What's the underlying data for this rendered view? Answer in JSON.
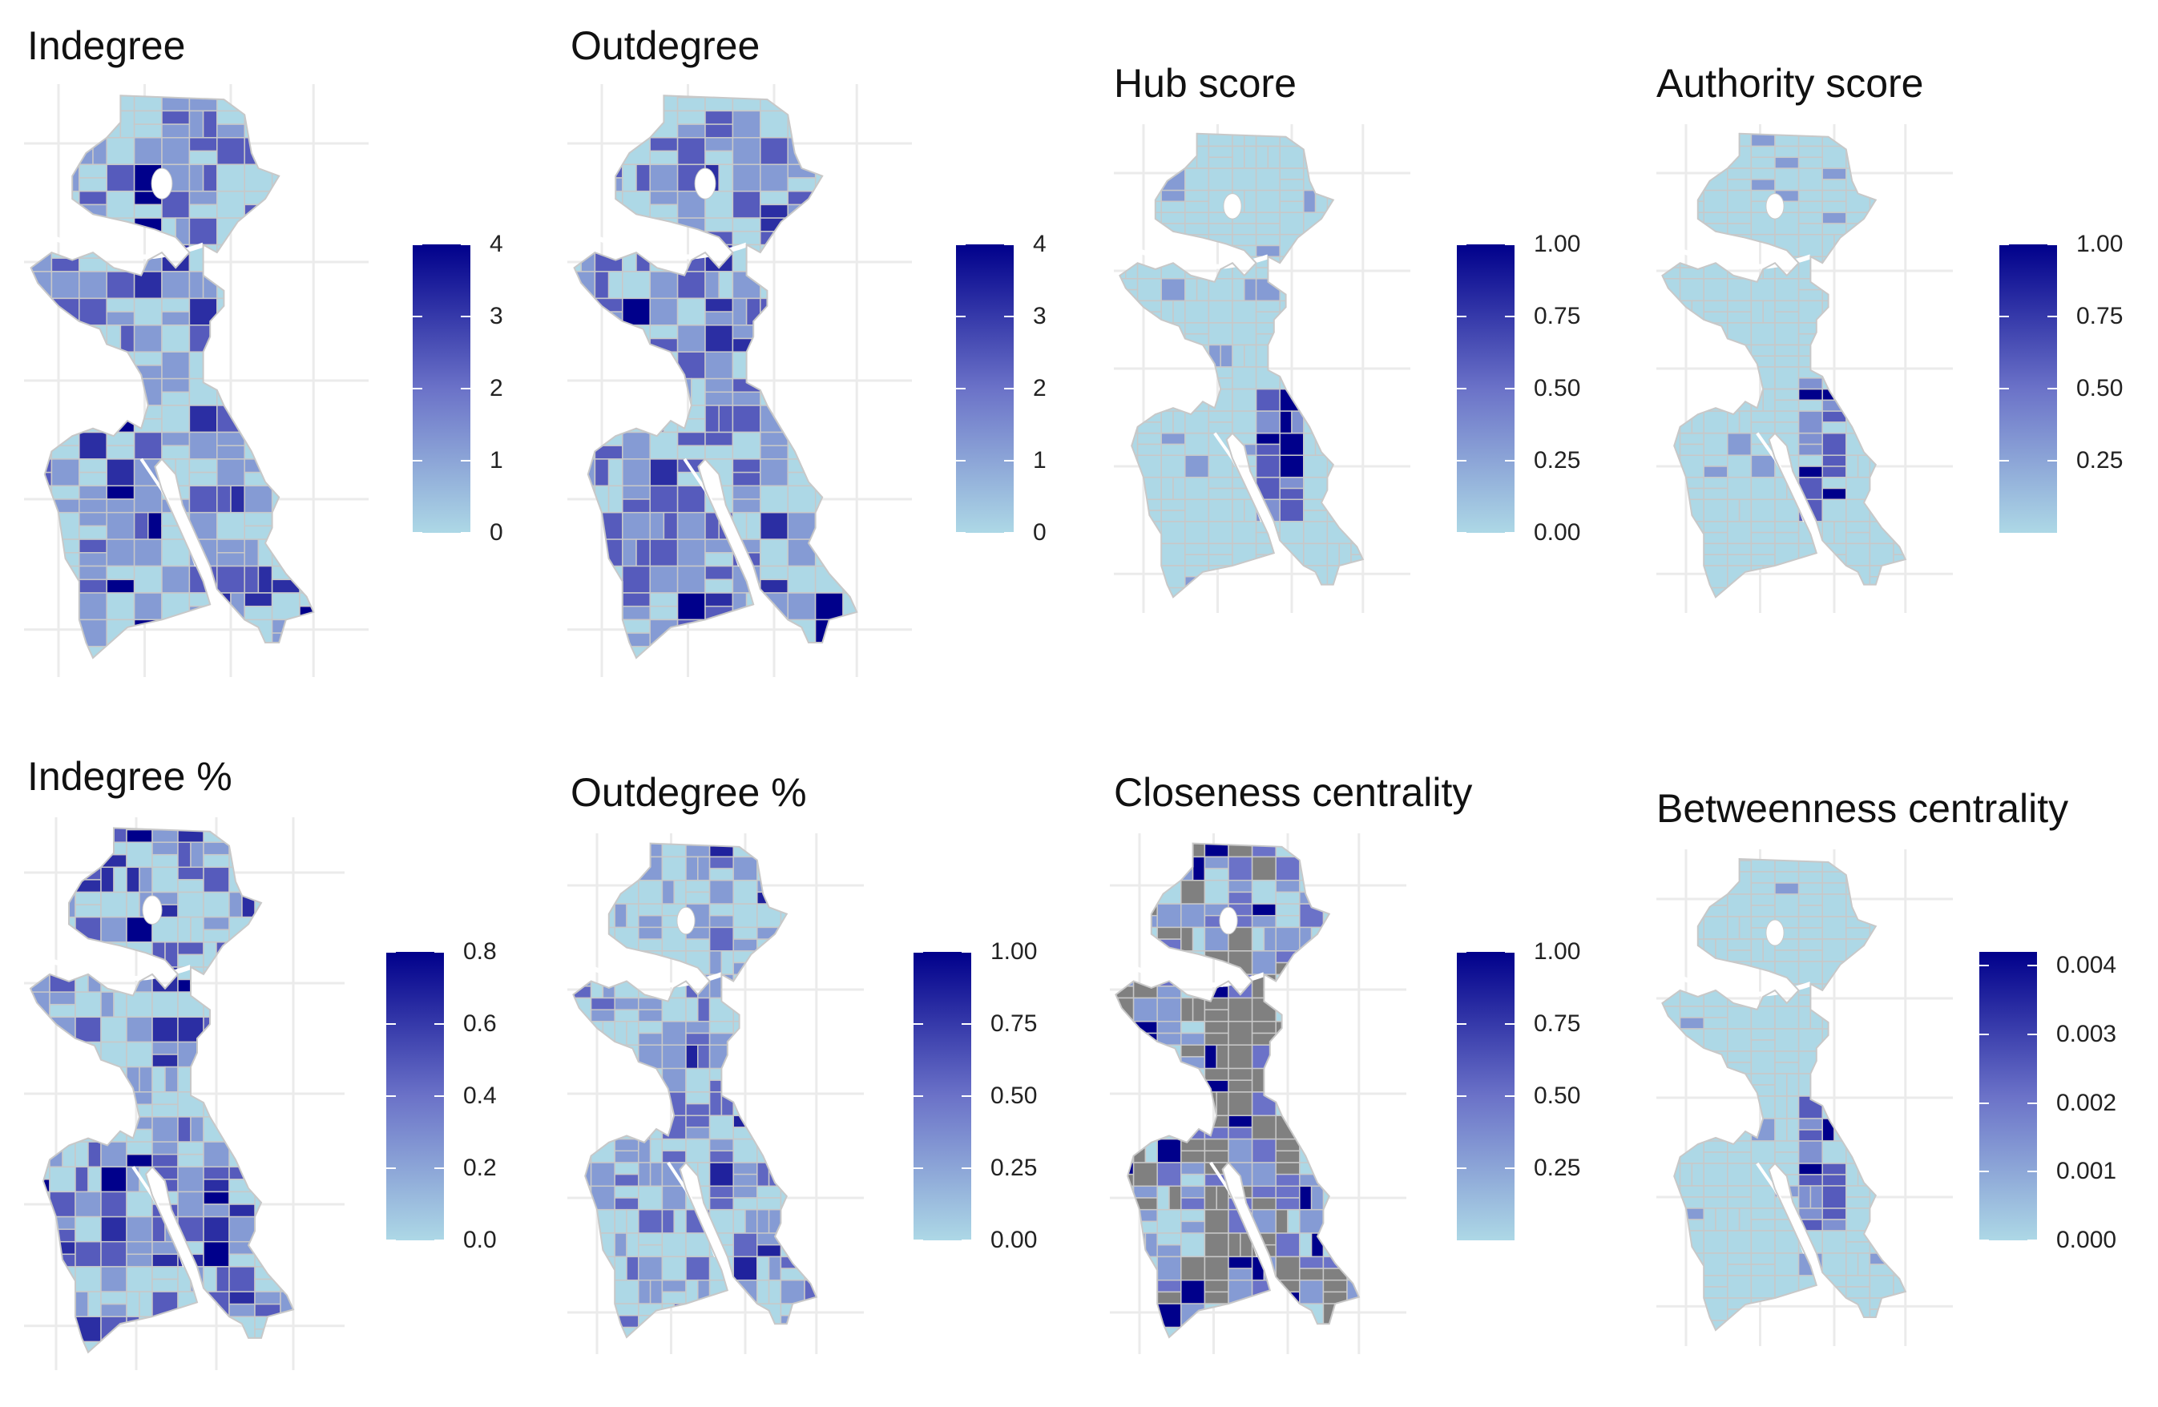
{
  "colors": {
    "low": "#add8e6",
    "mid": "#6b72c8",
    "high": "#00008b",
    "na": "#808080",
    "border": "#c8c8c8",
    "grid": "#ebebeb"
  },
  "panels": [
    {
      "title": "Indegree",
      "legend": {
        "min": 0,
        "max": 4,
        "labels": [
          "4",
          "3",
          "2",
          "1",
          "0"
        ],
        "label_values": [
          4,
          3,
          2,
          1,
          0
        ]
      },
      "fill": "mixed-medium"
    },
    {
      "title": "Outdegree",
      "legend": {
        "min": 0,
        "max": 4,
        "labels": [
          "4",
          "3",
          "2",
          "1",
          "0"
        ],
        "label_values": [
          4,
          3,
          2,
          1,
          0
        ]
      },
      "fill": "mixed-medium"
    },
    {
      "title": "Hub score",
      "legend": {
        "min": 0,
        "max": 1,
        "labels": [
          "1.00",
          "0.75",
          "0.50",
          "0.25",
          "0.00"
        ],
        "label_values": [
          1,
          0.75,
          0.5,
          0.25,
          0
        ]
      },
      "fill": "mostly-low"
    },
    {
      "title": "Authority score",
      "legend": {
        "min": 0,
        "max": 1,
        "labels": [
          "1.00",
          "0.75",
          "0.50",
          "0.25"
        ],
        "label_values": [
          1,
          0.75,
          0.5,
          0.25
        ]
      },
      "fill": "mostly-low"
    },
    {
      "title": "Indegree %",
      "legend": {
        "min": 0,
        "max": 0.8,
        "labels": [
          "0.8",
          "0.6",
          "0.4",
          "0.2",
          "0.0"
        ],
        "label_values": [
          0.8,
          0.6,
          0.4,
          0.2,
          0
        ]
      },
      "fill": "mixed-medium"
    },
    {
      "title": "Outdegree %",
      "legend": {
        "min": 0,
        "max": 1,
        "labels": [
          "1.00",
          "0.75",
          "0.50",
          "0.25",
          "0.00"
        ],
        "label_values": [
          1,
          0.75,
          0.5,
          0.25,
          0
        ]
      },
      "fill": "mixed-light"
    },
    {
      "title": "Closeness centrality",
      "legend": {
        "min": 0,
        "max": 1,
        "labels": [
          "1.00",
          "0.75",
          "0.50",
          "0.25"
        ],
        "label_values": [
          1,
          0.75,
          0.5,
          0.25
        ]
      },
      "fill": "with-na"
    },
    {
      "title": "Betweenness centrality",
      "legend": {
        "min": 0,
        "max": 0.0042,
        "labels": [
          "0.004",
          "0.003",
          "0.002",
          "0.001",
          "0.000"
        ],
        "label_values": [
          0.004,
          0.003,
          0.002,
          0.001,
          0
        ]
      },
      "fill": "mostly-low"
    }
  ]
}
